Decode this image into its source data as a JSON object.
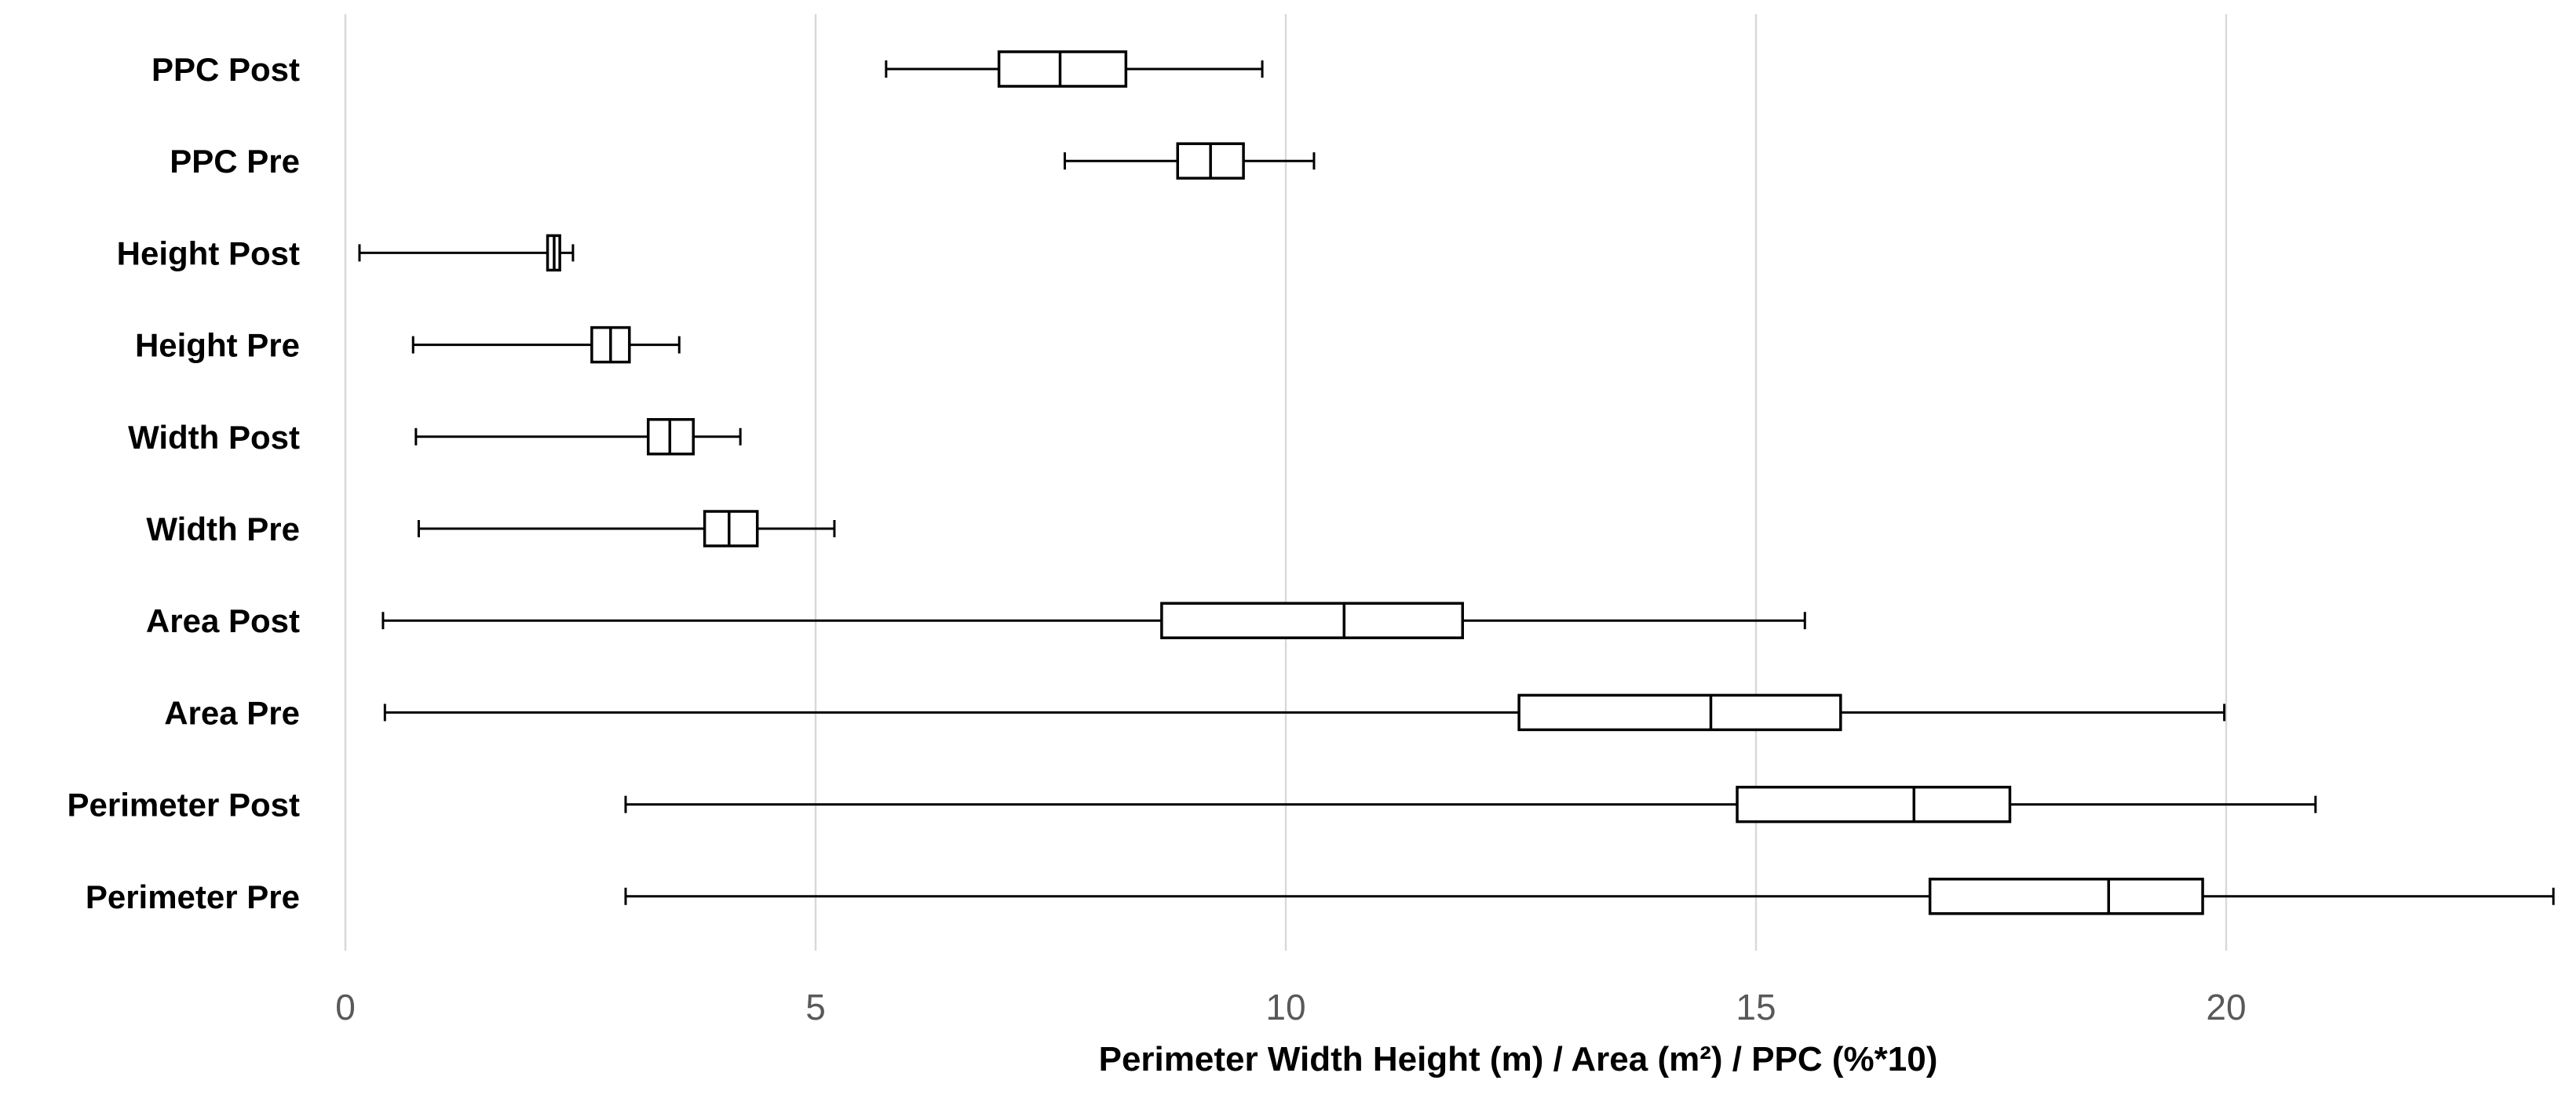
{
  "chart_data": {
    "type": "boxplot",
    "orientation": "horizontal",
    "title": "",
    "xlabel": "Perimeter Width Height (m) / Area (m²) / PPC (%*10)",
    "ylabel": "",
    "xlim": [
      0,
      23.5
    ],
    "xticks": [
      0,
      5,
      10,
      15,
      20
    ],
    "grid": true,
    "legend": "none",
    "series": [
      {
        "name": "PPC Post",
        "min": 5.75,
        "q1": 6.95,
        "median": 7.6,
        "q3": 8.3,
        "max": 9.75
      },
      {
        "name": "PPC Pre",
        "min": 7.65,
        "q1": 8.85,
        "median": 9.2,
        "q3": 9.55,
        "max": 10.3
      },
      {
        "name": "Height Post",
        "min": 0.15,
        "q1": 2.15,
        "median": 2.22,
        "q3": 2.28,
        "max": 2.42
      },
      {
        "name": "Height Pre",
        "min": 0.72,
        "q1": 2.62,
        "median": 2.82,
        "q3": 3.02,
        "max": 3.55
      },
      {
        "name": "Width Post",
        "min": 0.75,
        "q1": 3.22,
        "median": 3.45,
        "q3": 3.7,
        "max": 4.2
      },
      {
        "name": "Width Pre",
        "min": 0.78,
        "q1": 3.82,
        "median": 4.08,
        "q3": 4.38,
        "max": 5.2
      },
      {
        "name": "Area Post",
        "min": 0.4,
        "q1": 8.68,
        "median": 10.62,
        "q3": 11.88,
        "max": 15.52
      },
      {
        "name": "Area Pre",
        "min": 0.42,
        "q1": 12.48,
        "median": 14.52,
        "q3": 15.9,
        "max": 19.98
      },
      {
        "name": "Perimeter Post",
        "min": 2.98,
        "q1": 14.8,
        "median": 16.68,
        "q3": 17.7,
        "max": 20.95
      },
      {
        "name": "Perimeter Pre",
        "min": 2.98,
        "q1": 16.85,
        "median": 18.75,
        "q3": 19.75,
        "max": 23.48
      }
    ]
  }
}
